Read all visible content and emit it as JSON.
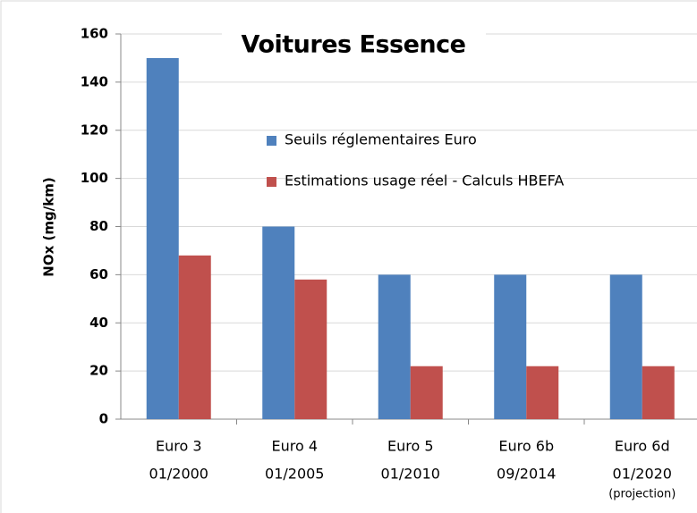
{
  "chart_data": {
    "type": "bar",
    "title": "Voitures Essence",
    "y_label": "NOx (mg/km)",
    "categories": [
      [
        "Euro 3",
        "01/2000"
      ],
      [
        "Euro 4",
        "01/2005"
      ],
      [
        "Euro 5",
        "01/2010"
      ],
      [
        "Euro 6b",
        "09/2014"
      ],
      [
        "Euro 6d",
        "01/2020",
        "(projection)"
      ]
    ],
    "series": [
      {
        "name": "Seuils réglementaires Euro",
        "color": "#4f81bd",
        "values": [
          150,
          80,
          60,
          60,
          60
        ]
      },
      {
        "name": "Estimations usage réel - Calculs HBEFA",
        "color": "#c0504d",
        "values": [
          68,
          58,
          22,
          22,
          22
        ]
      }
    ],
    "ylim": [
      0,
      160
    ],
    "yticks": [
      0,
      20,
      40,
      60,
      80,
      100,
      120,
      140,
      160
    ],
    "grid": true
  }
}
